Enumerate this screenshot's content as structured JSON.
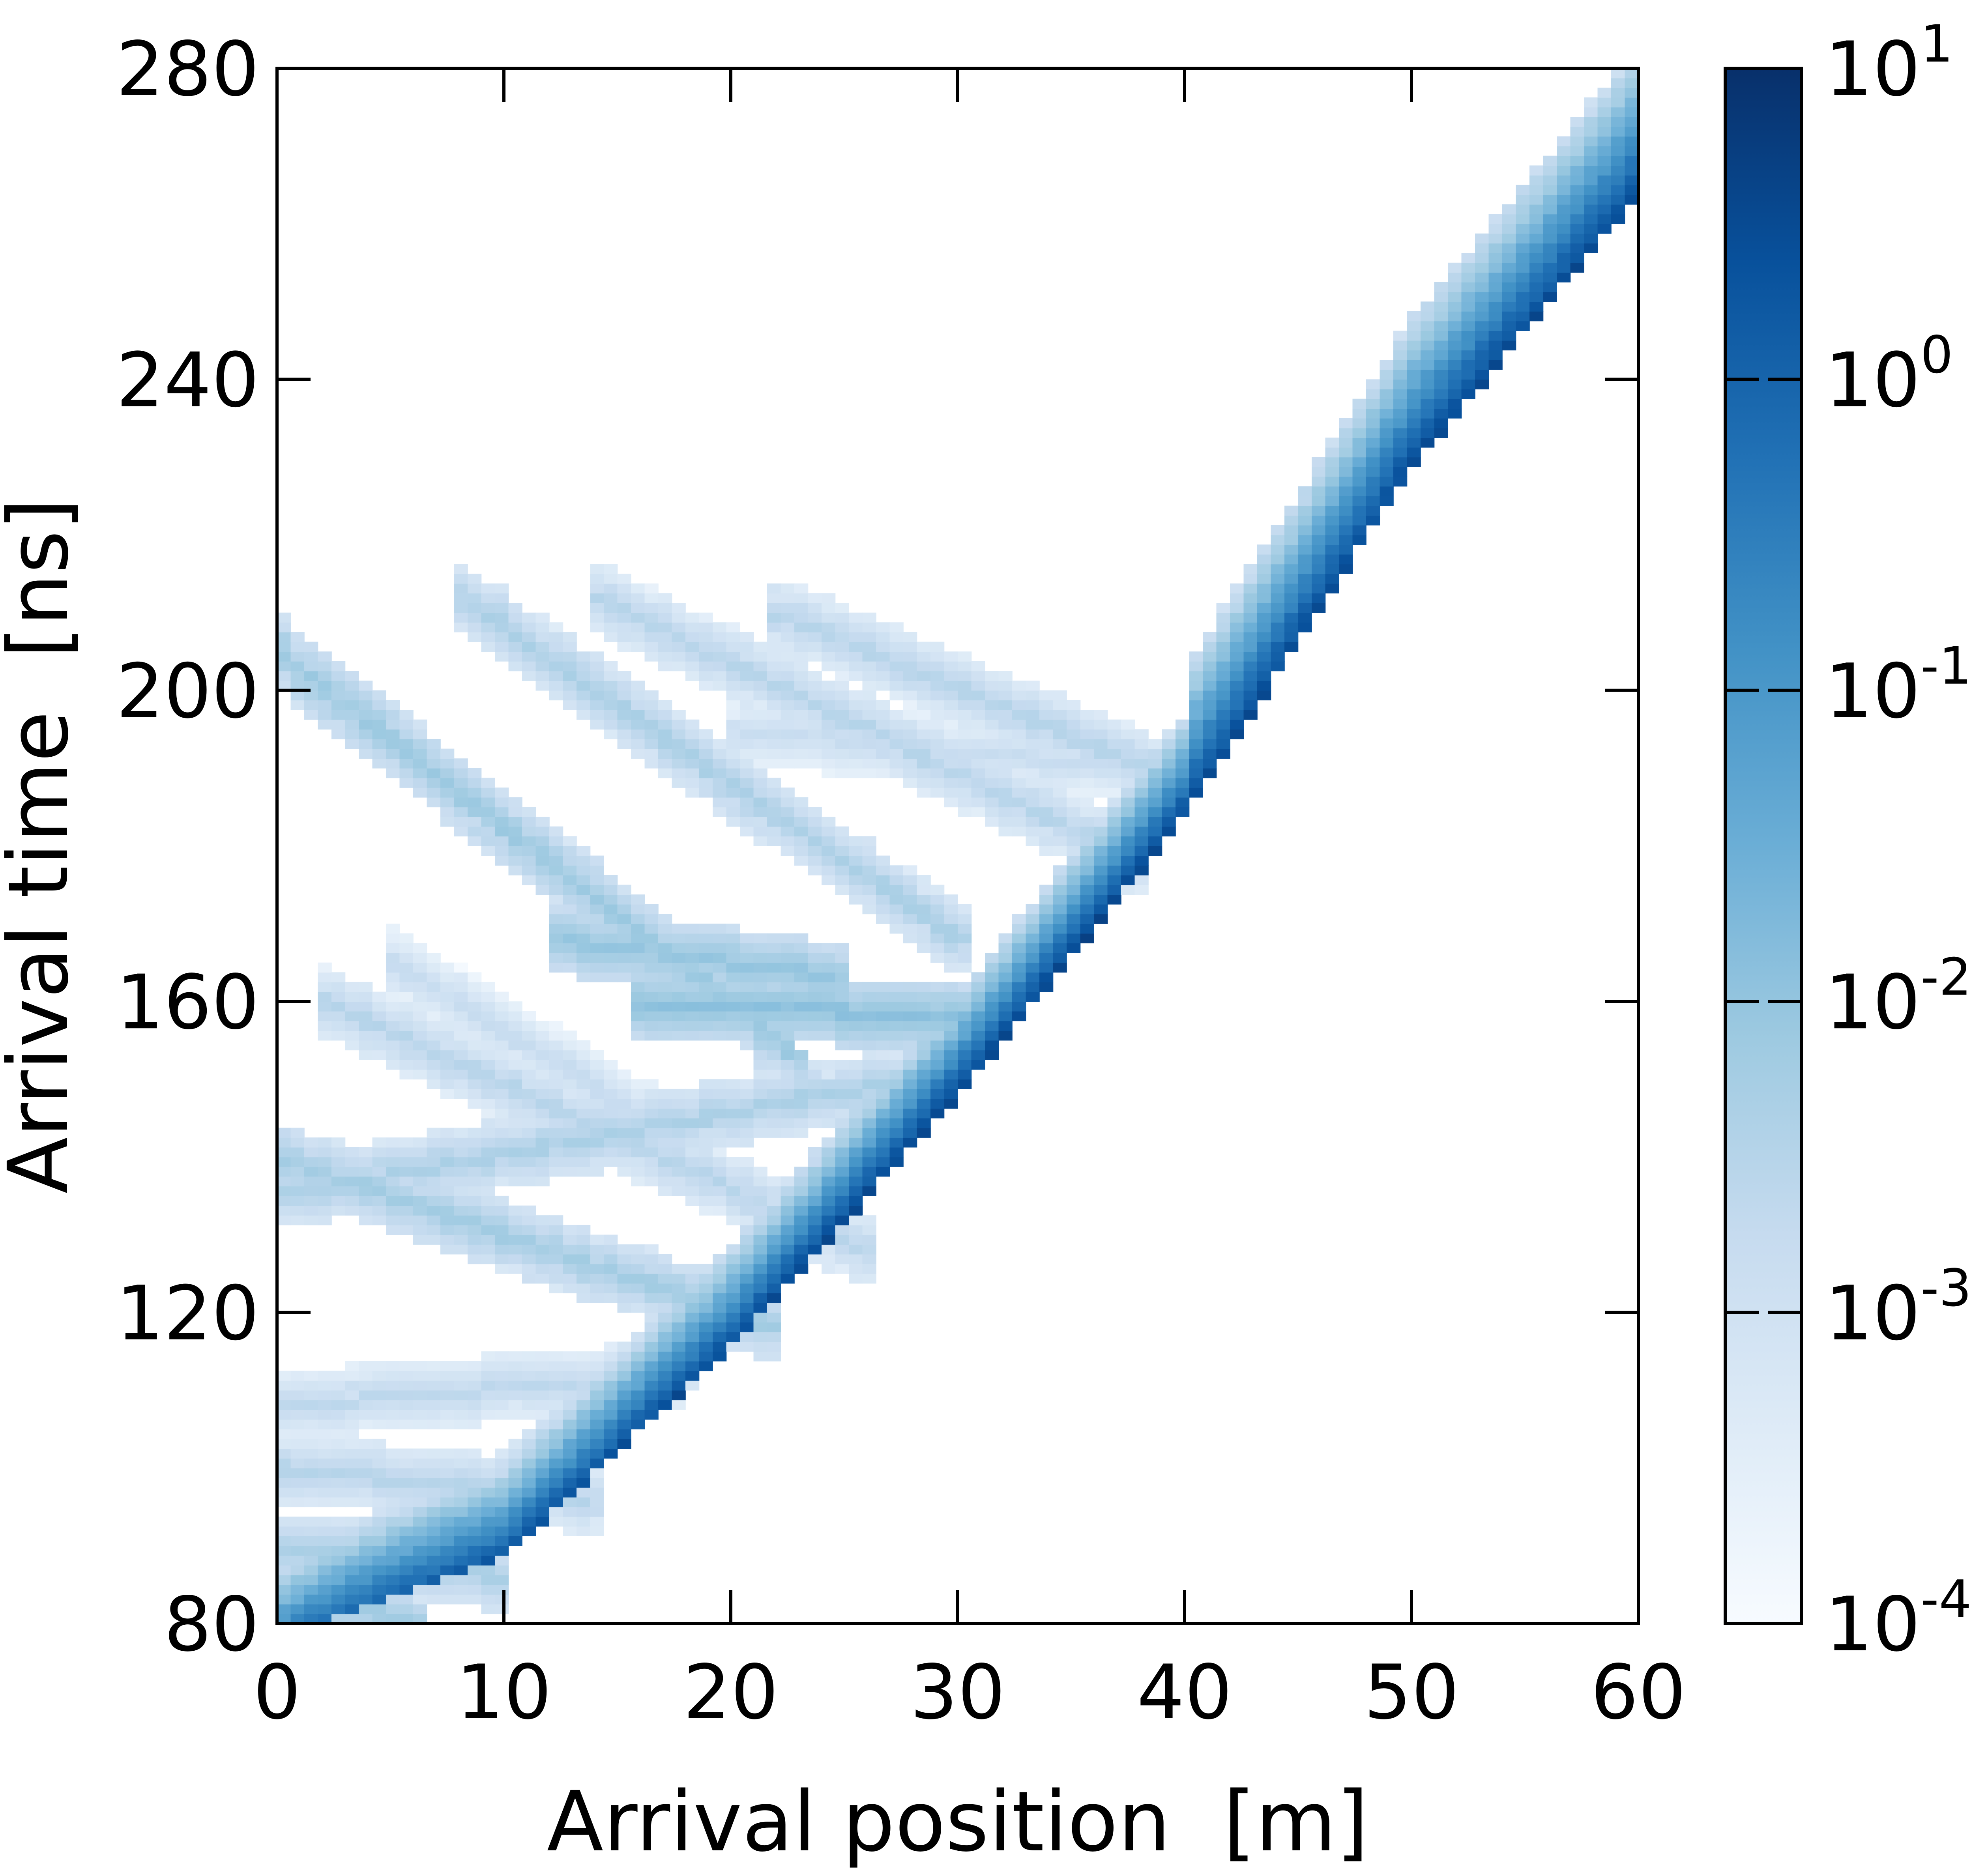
{
  "chart_data": {
    "type": "heatmap",
    "xlabel": "Arrival position  [m]",
    "ylabel": "Arrival time  [ns]",
    "xlim": [
      0,
      60
    ],
    "ylim": [
      80,
      280
    ],
    "x_ticks": [
      0,
      10,
      20,
      30,
      40,
      50,
      60
    ],
    "y_ticks": [
      80,
      120,
      160,
      200,
      240,
      280
    ],
    "colorbar": {
      "scale": "log",
      "range": [
        0.0001,
        10
      ],
      "ticks": [
        {
          "base": "10",
          "exp": "1",
          "value": 10
        },
        {
          "base": "10",
          "exp": "0",
          "value": 1
        },
        {
          "base": "10",
          "exp": "-1",
          "value": 0.1
        },
        {
          "base": "10",
          "exp": "-2",
          "value": 0.01
        },
        {
          "base": "10",
          "exp": "-3",
          "value": 0.001
        },
        {
          "base": "10",
          "exp": "-4",
          "value": 0.0001
        }
      ],
      "colormap": "Blues",
      "colors": [
        "#f7fbff",
        "#deebf7",
        "#c6dbef",
        "#9ecae1",
        "#6baed6",
        "#4292c6",
        "#2171b5",
        "#08519c",
        "#08306b"
      ]
    },
    "grid": false,
    "description_of_structure": "",
    "direct_band": {
      "points": [
        [
          0,
          80
        ],
        [
          10,
          90
        ],
        [
          20,
          117
        ],
        [
          30,
          149
        ],
        [
          40,
          185
        ],
        [
          50,
          230
        ],
        [
          60,
          265
        ]
      ],
      "peak_value": 2.0
    },
    "reflection_bands": [
      {
        "start": [
          0,
          205
        ],
        "end": [
          23,
          153
        ],
        "value": 0.005
      },
      {
        "start": [
          8,
          212
        ],
        "end": [
          30,
          168
        ],
        "value": 0.003
      },
      {
        "start": [
          14,
          212
        ],
        "end": [
          38,
          178
        ],
        "value": 0.002
      },
      {
        "start": [
          22,
          210
        ],
        "end": [
          40,
          188
        ],
        "value": 0.002
      },
      {
        "start": [
          20,
          195
        ],
        "end": [
          38,
          190
        ],
        "value": 0.001
      },
      {
        "start": [
          0,
          135
        ],
        "end": [
          28,
          150
        ],
        "value": 0.003
      },
      {
        "start": [
          0,
          140
        ],
        "end": [
          22,
          118
        ],
        "value": 0.004
      },
      {
        "start": [
          2,
          160
        ],
        "end": [
          26,
          128
        ],
        "value": 0.002
      },
      {
        "start": [
          5,
          165
        ],
        "end": [
          18,
          142
        ],
        "value": 0.001
      },
      {
        "start": [
          0,
          108
        ],
        "end": [
          18,
          112
        ],
        "value": 0.0015
      },
      {
        "start": [
          0,
          100
        ],
        "end": [
          14,
          96
        ],
        "value": 0.002
      },
      {
        "start": [
          0,
          90
        ],
        "end": [
          10,
          86
        ],
        "value": 0.003
      },
      {
        "start": [
          0,
          82
        ],
        "end": [
          6,
          81
        ],
        "value": 0.004
      },
      {
        "start": [
          16,
          160
        ],
        "end": [
          30,
          158
        ],
        "value": 0.008
      },
      {
        "start": [
          12,
          168
        ],
        "end": [
          25,
          163
        ],
        "value": 0.006
      }
    ]
  }
}
